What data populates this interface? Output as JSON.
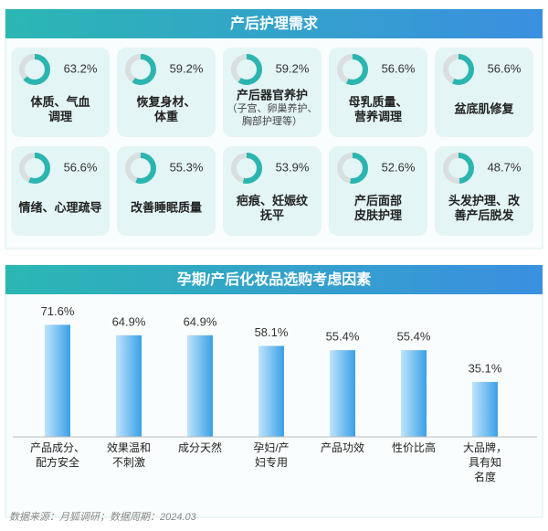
{
  "chart_data": [
    {
      "type": "ring",
      "title": "产后护理需求",
      "categories": [
        [
          "体质、气血",
          "调理"
        ],
        [
          "恢复身材、",
          "体重"
        ],
        [
          "产后器官养护"
        ],
        [
          "母乳质量、",
          "营养调理"
        ],
        [
          "盆底肌修复"
        ],
        [
          "情绪、心理疏导"
        ],
        [
          "改善睡眠质量"
        ],
        [
          "疤痕、妊娠纹",
          "抚平"
        ],
        [
          "产后面部",
          "皮肤护理"
        ],
        [
          "头发护理、改",
          "善产后脱发"
        ]
      ],
      "category_notes": [
        null,
        null,
        [
          "（子宫、卵巢养护、",
          "胸部护理等）"
        ],
        null,
        null,
        null,
        null,
        null,
        null,
        null
      ],
      "values": [
        63.2,
        59.2,
        59.2,
        56.6,
        56.6,
        56.6,
        55.3,
        53.9,
        52.6,
        48.7
      ],
      "value_labels": [
        "63.2%",
        "59.2%",
        "59.2%",
        "56.6%",
        "56.6%",
        "56.6%",
        "55.3%",
        "53.9%",
        "52.6%",
        "48.7%"
      ],
      "color": "#2bb5b0",
      "track_color": "#d9dede"
    },
    {
      "type": "bar",
      "title": "孕期/产后化妆品选购考虑因素",
      "categories": [
        [
          "产品成分、",
          "配方安全"
        ],
        [
          "效果温和",
          "不刺激"
        ],
        [
          "成分天然"
        ],
        [
          "孕妇/产",
          "妇专用"
        ],
        [
          "产品功效"
        ],
        [
          "性价比高"
        ],
        [
          "大品牌，",
          "具有知",
          "名度"
        ]
      ],
      "values": [
        71.6,
        64.9,
        64.9,
        58.1,
        55.4,
        55.4,
        35.1
      ],
      "value_labels": [
        "71.6%",
        "64.9%",
        "64.9%",
        "58.1%",
        "55.4%",
        "55.4%",
        "35.1%"
      ],
      "color": "#3aa0e8",
      "ylim": [
        0,
        80
      ]
    }
  ],
  "source": "数据来源：月狐调研；数据周期：2024.03"
}
